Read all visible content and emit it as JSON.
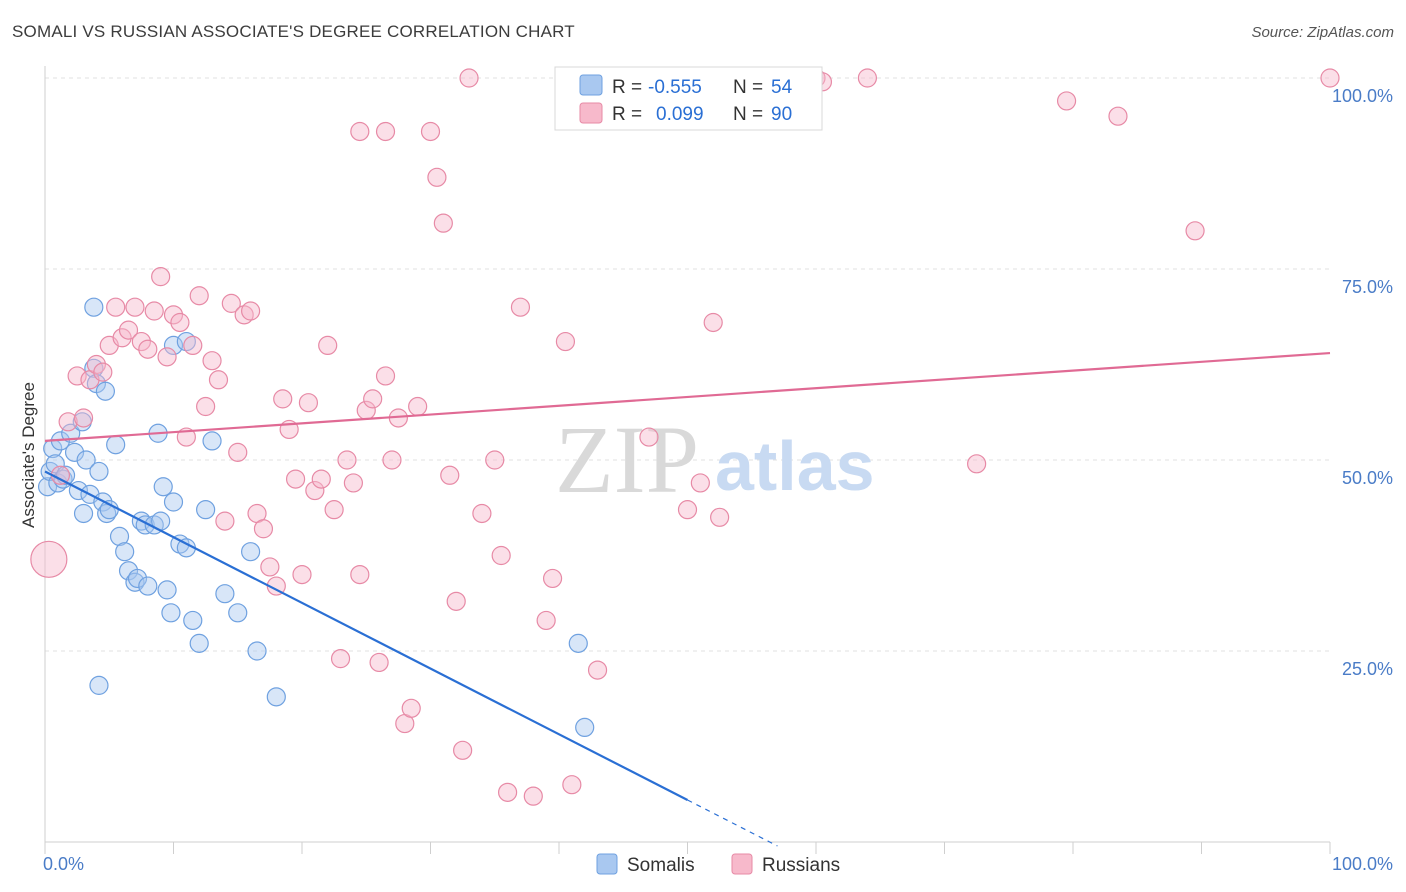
{
  "title": "SOMALI VS RUSSIAN ASSOCIATE'S DEGREE CORRELATION CHART",
  "source": "Source: ZipAtlas.com",
  "watermark": {
    "zip": "ZIP",
    "atlas": "atlas"
  },
  "legend": {
    "rows": [
      {
        "r_label": "R =",
        "r_value": "-0.555",
        "n_label": "N =",
        "n_value": "54",
        "color": "#a9c8f0",
        "stroke": "#6fa1e0"
      },
      {
        "r_label": "R =",
        "r_value": "0.099",
        "n_label": "N =",
        "n_value": "90",
        "color": "#f7b9cb",
        "stroke": "#e78aa6"
      }
    ]
  },
  "bottom_legend": [
    {
      "label": "Somalis",
      "color": "#a9c8f0",
      "stroke": "#6fa1e0"
    },
    {
      "label": "Russians",
      "color": "#f7b9cb",
      "stroke": "#e78aa6"
    }
  ],
  "chart_data": {
    "type": "scatter",
    "title": "SOMALI VS RUSSIAN ASSOCIATE'S DEGREE CORRELATION CHART",
    "xlabel": "",
    "ylabel": "Associate's Degree",
    "xlim": [
      0,
      100
    ],
    "ylim": [
      0,
      100
    ],
    "x_tick_labels": [
      "0.0%",
      "100.0%"
    ],
    "y_tick_labels": [
      "25.0%",
      "50.0%",
      "75.0%",
      "100.0%"
    ],
    "y_ticks": [
      25,
      50,
      75,
      100
    ],
    "grid": true,
    "legend_position": "top-center",
    "series": [
      {
        "name": "Somalis",
        "color": "#a9c8f0",
        "stroke": "#6fa1e0",
        "line_color": "#2a6fd4",
        "trend": {
          "x0": 0,
          "y0": 48.5,
          "x1": 50,
          "y1": 5.5,
          "dash_to_x": 57
        },
        "points": [
          [
            0.2,
            46.5
          ],
          [
            0.4,
            48.5
          ],
          [
            0.6,
            51.5
          ],
          [
            0.8,
            49.5
          ],
          [
            1.0,
            47.0
          ],
          [
            1.2,
            52.5
          ],
          [
            1.4,
            47.5
          ],
          [
            1.6,
            48.0
          ],
          [
            2.0,
            53.5
          ],
          [
            2.3,
            51.0
          ],
          [
            2.6,
            46.0
          ],
          [
            2.9,
            55.0
          ],
          [
            3.2,
            50.0
          ],
          [
            3.5,
            45.5
          ],
          [
            3.8,
            62.0
          ],
          [
            4.0,
            60.0
          ],
          [
            3.8,
            70.0
          ],
          [
            4.2,
            48.5
          ],
          [
            4.5,
            44.5
          ],
          [
            4.8,
            43.0
          ],
          [
            5.0,
            43.5
          ],
          [
            5.5,
            52.0
          ],
          [
            3.0,
            43.0
          ],
          [
            4.7,
            59.0
          ],
          [
            5.8,
            40.0
          ],
          [
            6.2,
            38.0
          ],
          [
            6.5,
            35.5
          ],
          [
            7.0,
            34.0
          ],
          [
            7.2,
            34.5
          ],
          [
            7.5,
            42.0
          ],
          [
            7.8,
            41.5
          ],
          [
            8.0,
            33.5
          ],
          [
            8.5,
            41.5
          ],
          [
            9.0,
            42.0
          ],
          [
            9.2,
            46.5
          ],
          [
            9.5,
            33.0
          ],
          [
            9.8,
            30.0
          ],
          [
            10.0,
            44.5
          ],
          [
            10.5,
            39.0
          ],
          [
            11.0,
            38.5
          ],
          [
            11.5,
            29.0
          ],
          [
            12.0,
            26.0
          ],
          [
            12.5,
            43.5
          ],
          [
            13.0,
            52.5
          ],
          [
            14.0,
            32.5
          ],
          [
            15.0,
            30.0
          ],
          [
            16.0,
            38.0
          ],
          [
            16.5,
            25.0
          ],
          [
            18.0,
            19.0
          ],
          [
            8.8,
            53.5
          ],
          [
            10.0,
            65.0
          ],
          [
            11.0,
            65.5
          ],
          [
            42.0,
            15.0
          ],
          [
            41.5,
            26.0
          ],
          [
            4.2,
            20.5
          ]
        ]
      },
      {
        "name": "Russians",
        "color": "#f7b9cb",
        "stroke": "#e78aa6",
        "line_color": "#e06a94",
        "trend": {
          "x0": 0,
          "y0": 52.5,
          "x1": 100,
          "y1": 64.0
        },
        "points": [
          [
            0.3,
            37.0
          ],
          [
            1.2,
            48.0
          ],
          [
            1.8,
            55.0
          ],
          [
            2.5,
            61.0
          ],
          [
            3.0,
            55.5
          ],
          [
            3.5,
            60.5
          ],
          [
            4.0,
            62.5
          ],
          [
            4.5,
            61.5
          ],
          [
            5.0,
            65.0
          ],
          [
            5.5,
            70.0
          ],
          [
            6.0,
            66.0
          ],
          [
            6.5,
            67.0
          ],
          [
            7.0,
            70.0
          ],
          [
            7.5,
            65.5
          ],
          [
            8.0,
            64.5
          ],
          [
            8.5,
            69.5
          ],
          [
            9.0,
            74.0
          ],
          [
            9.5,
            63.5
          ],
          [
            10.0,
            69.0
          ],
          [
            10.5,
            68.0
          ],
          [
            11.0,
            53.0
          ],
          [
            11.5,
            65.0
          ],
          [
            12.0,
            71.5
          ],
          [
            12.5,
            57.0
          ],
          [
            13.0,
            63.0
          ],
          [
            13.5,
            60.5
          ],
          [
            14.0,
            42.0
          ],
          [
            14.5,
            70.5
          ],
          [
            15.0,
            51.0
          ],
          [
            15.5,
            69.0
          ],
          [
            16.0,
            69.5
          ],
          [
            16.5,
            43.0
          ],
          [
            17.0,
            41.0
          ],
          [
            17.5,
            36.0
          ],
          [
            18.0,
            33.5
          ],
          [
            18.5,
            58.0
          ],
          [
            19.0,
            54.0
          ],
          [
            19.5,
            47.5
          ],
          [
            20.0,
            35.0
          ],
          [
            20.5,
            57.5
          ],
          [
            21.0,
            46.0
          ],
          [
            21.5,
            47.5
          ],
          [
            22.0,
            65.0
          ],
          [
            22.5,
            43.5
          ],
          [
            23.0,
            24.0
          ],
          [
            23.5,
            50.0
          ],
          [
            24.0,
            47.0
          ],
          [
            24.5,
            35.0
          ],
          [
            25.0,
            56.5
          ],
          [
            25.5,
            58.0
          ],
          [
            26.0,
            23.5
          ],
          [
            26.5,
            61.0
          ],
          [
            27.0,
            50.0
          ],
          [
            27.5,
            55.5
          ],
          [
            28.0,
            15.5
          ],
          [
            28.5,
            17.5
          ],
          [
            29.0,
            57.0
          ],
          [
            30.0,
            93.0
          ],
          [
            30.5,
            87.0
          ],
          [
            31.0,
            81.0
          ],
          [
            31.5,
            48.0
          ],
          [
            32.0,
            31.5
          ],
          [
            32.5,
            12.0
          ],
          [
            33.0,
            100.0
          ],
          [
            34.0,
            43.0
          ],
          [
            35.0,
            50.0
          ],
          [
            35.5,
            37.5
          ],
          [
            36.0,
            6.5
          ],
          [
            37.0,
            70.0
          ],
          [
            38.0,
            6.0
          ],
          [
            39.0,
            29.0
          ],
          [
            39.5,
            34.5
          ],
          [
            40.5,
            65.5
          ],
          [
            41.0,
            7.5
          ],
          [
            43.0,
            22.5
          ],
          [
            47.0,
            53.0
          ],
          [
            50.0,
            43.5
          ],
          [
            51.0,
            47.0
          ],
          [
            52.0,
            68.0
          ],
          [
            52.5,
            42.5
          ],
          [
            60.0,
            100.0
          ],
          [
            60.5,
            99.5
          ],
          [
            64.0,
            100.0
          ],
          [
            72.5,
            49.5
          ],
          [
            83.5,
            95.0
          ],
          [
            79.5,
            97.0
          ],
          [
            89.5,
            80.0
          ],
          [
            100.0,
            100.0
          ],
          [
            24.5,
            93.0
          ],
          [
            26.5,
            93.0
          ]
        ]
      }
    ]
  }
}
